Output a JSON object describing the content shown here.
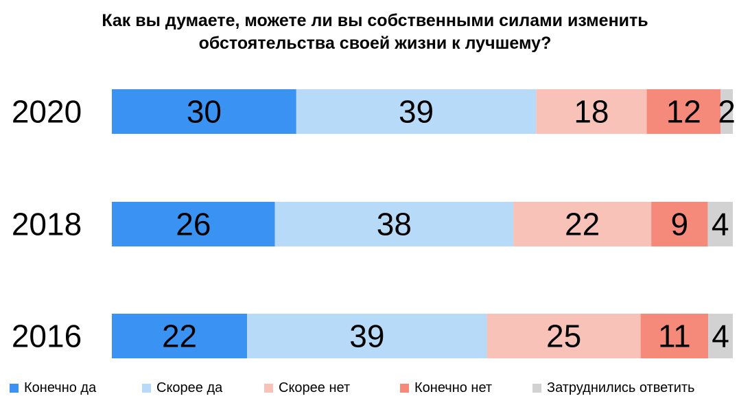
{
  "chart_data": {
    "type": "bar",
    "orientation": "horizontal",
    "stacked": true,
    "title": "Как вы думаете, можете ли вы собственными силами изменить обстоятельства своей жизни к лучшему?",
    "title_lines": [
      "Как вы думаете, можете ли вы собственными силами изменить",
      "обстоятельства своей жизни к лучшему?"
    ],
    "categories": [
      "2020",
      "2018",
      "2016"
    ],
    "series": [
      {
        "name": "Конечно да",
        "color": "#3a93f2",
        "values": [
          30,
          26,
          22
        ]
      },
      {
        "name": "Скорее да",
        "color": "#b8daf9",
        "values": [
          39,
          38,
          39
        ]
      },
      {
        "name": "Скорее нет",
        "color": "#f9c2b8",
        "values": [
          18,
          22,
          25
        ]
      },
      {
        "name": "Конечно нет",
        "color": "#f5897a",
        "values": [
          12,
          9,
          11
        ]
      },
      {
        "name": "Затруднились ответить",
        "color": "#d2d2d2",
        "values": [
          2,
          4,
          4
        ]
      }
    ],
    "xlabel": "",
    "ylabel": "",
    "data_labels": true,
    "grid": false,
    "legend_position": "bottom"
  }
}
